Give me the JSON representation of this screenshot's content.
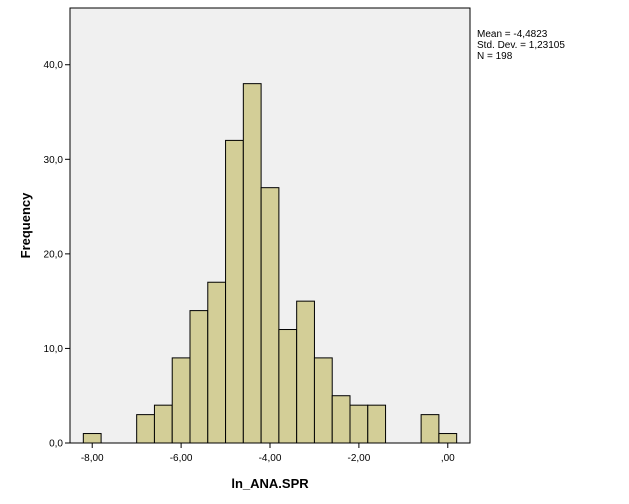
{
  "chart_data": {
    "type": "bar",
    "subtype": "histogram",
    "xlabel": "ln_ANA.SPR",
    "ylabel": "Frequency",
    "xlim": [
      -8.5,
      0.5
    ],
    "ylim": [
      0,
      46
    ],
    "x_ticks": [
      {
        "value": -8,
        "label": "-8,00"
      },
      {
        "value": -6,
        "label": "-6,00"
      },
      {
        "value": -4,
        "label": "-4,00"
      },
      {
        "value": -2,
        "label": "-2,00"
      },
      {
        "value": 0,
        "label": ",00"
      }
    ],
    "y_ticks": [
      {
        "value": 0,
        "label": "0,0"
      },
      {
        "value": 10,
        "label": "10,0"
      },
      {
        "value": 20,
        "label": "20,0"
      },
      {
        "value": 30,
        "label": "30,0"
      },
      {
        "value": 40,
        "label": "40,0"
      }
    ],
    "bin_width": 0.4,
    "bins": [
      {
        "start": -8.2,
        "count": 1
      },
      {
        "start": -7.8,
        "count": 0
      },
      {
        "start": -7.4,
        "count": 0
      },
      {
        "start": -7.0,
        "count": 3
      },
      {
        "start": -6.6,
        "count": 4
      },
      {
        "start": -6.2,
        "count": 9
      },
      {
        "start": -5.8,
        "count": 14
      },
      {
        "start": -5.4,
        "count": 17
      },
      {
        "start": -5.0,
        "count": 32
      },
      {
        "start": -4.6,
        "count": 38
      },
      {
        "start": -4.2,
        "count": 27
      },
      {
        "start": -3.8,
        "count": 12
      },
      {
        "start": -3.4,
        "count": 15
      },
      {
        "start": -3.0,
        "count": 9
      },
      {
        "start": -2.6,
        "count": 5
      },
      {
        "start": -2.2,
        "count": 4
      },
      {
        "start": -1.8,
        "count": 4
      },
      {
        "start": -1.4,
        "count": 0
      },
      {
        "start": -1.0,
        "count": 0
      },
      {
        "start": -0.6,
        "count": 3
      },
      {
        "start": -0.2,
        "count": 1
      }
    ],
    "stats": {
      "mean": "Mean = -4,4823",
      "std_dev": "Std. Dev. = 1,23105",
      "n": "N = 198"
    },
    "grid": false,
    "colors": {
      "plot_background": "#f0f0f0",
      "bar_fill": "#d3ce97",
      "bar_stroke": "#000000",
      "frame": "#000000"
    }
  }
}
